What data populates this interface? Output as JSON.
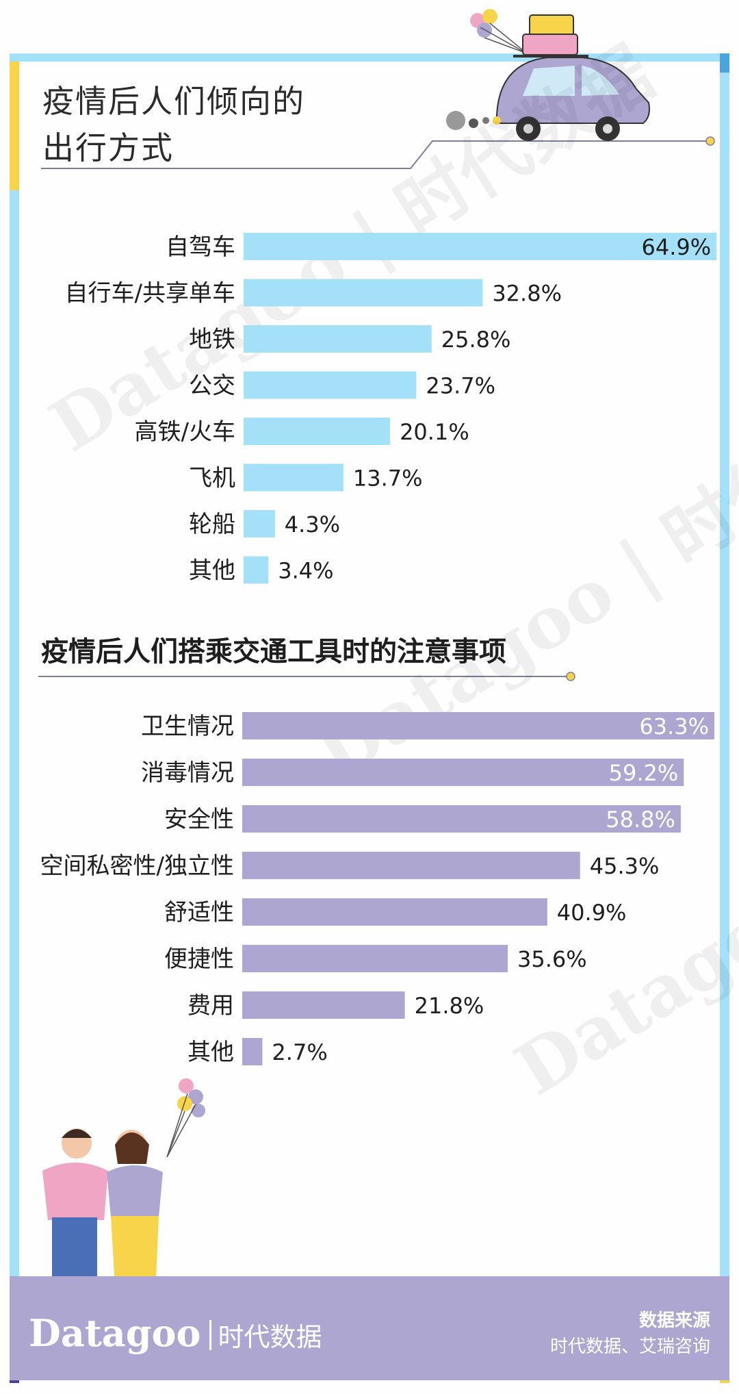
{
  "colors": {
    "bar_blue": "#a4e0f8",
    "bar_purple": "#ada6d1",
    "frame_blue": "#a4e0f8",
    "accent_yellow": "#f7d44a",
    "footer": "#ada6d1"
  },
  "title_main": [
    "疫情后人们倾向的",
    "出行方式"
  ],
  "title_second": "疫情后人们搭乘交通工具时的注意事项",
  "watermark": "Datagoo | 时代数据",
  "chart_data": [
    {
      "type": "bar",
      "orientation": "horizontal",
      "title": "疫情后人们倾向的出行方式",
      "categories": [
        "自驾车",
        "自行车/共享单车",
        "地铁",
        "公交",
        "高铁/火车",
        "飞机",
        "轮船",
        "其他"
      ],
      "values": [
        64.9,
        32.8,
        25.8,
        23.7,
        20.1,
        13.7,
        4.3,
        3.4
      ],
      "value_labels": [
        "64.9%",
        "32.8%",
        "25.8%",
        "23.7%",
        "20.1%",
        "13.7%",
        "4.3%",
        "3.4%"
      ],
      "unit": "%",
      "color": "#a4e0f8",
      "grid": false,
      "legend": "none"
    },
    {
      "type": "bar",
      "orientation": "horizontal",
      "title": "疫情后人们搭乘交通工具时的注意事项",
      "categories": [
        "卫生情况",
        "消毒情况",
        "安全性",
        "空间私密性/独立性",
        "舒适性",
        "便捷性",
        "费用",
        "其他"
      ],
      "values": [
        63.3,
        59.2,
        58.8,
        45.3,
        40.9,
        35.6,
        21.8,
        2.7
      ],
      "value_labels": [
        "63.3%",
        "59.2%",
        "58.8%",
        "45.3%",
        "40.9%",
        "35.6%",
        "21.8%",
        "2.7%"
      ],
      "unit": "%",
      "color": "#ada6d1",
      "grid": false,
      "legend": "none"
    }
  ],
  "footer": {
    "brand_latin": "Datagoo",
    "brand_cn": "时代数据",
    "source_title": "数据来源",
    "source_body": "时代数据、艾瑞咨询"
  }
}
